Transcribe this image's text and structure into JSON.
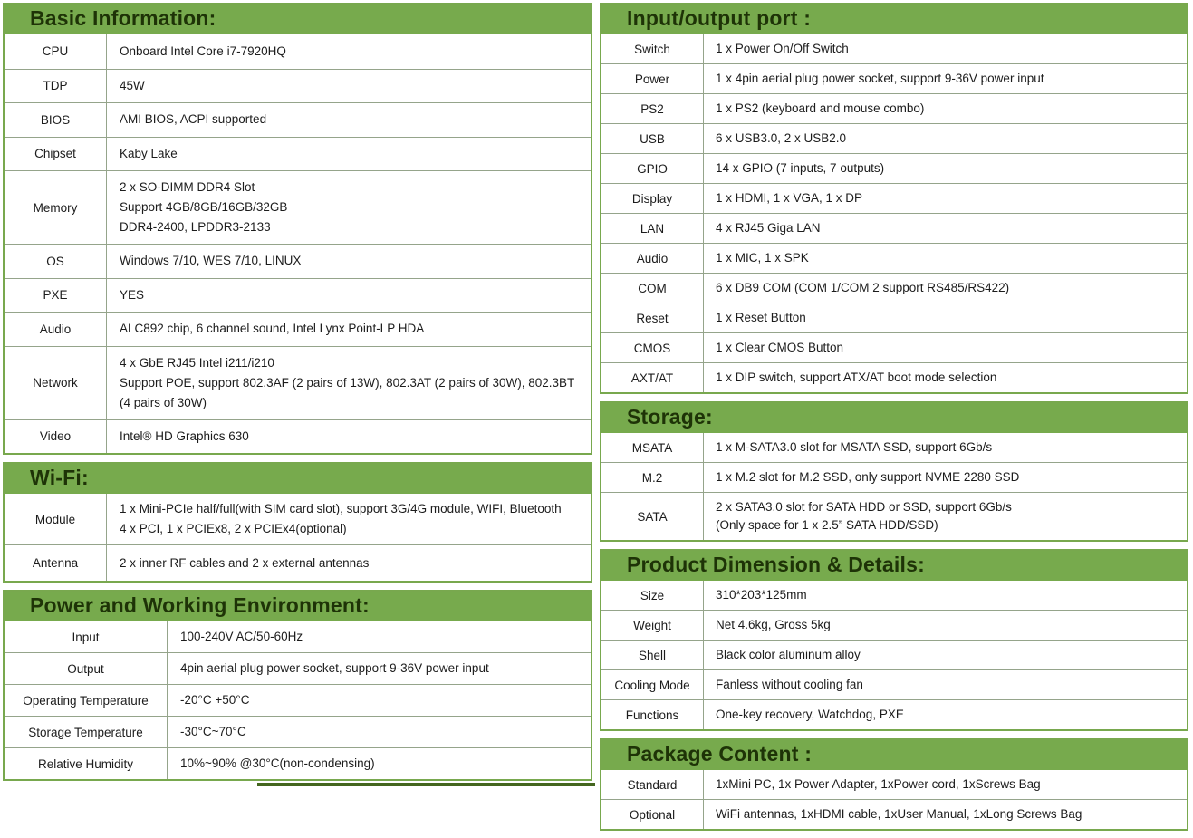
{
  "colors": {
    "header_green": "#77aa4d",
    "header_text": "#1e3307",
    "table_border_green": "#78a84e",
    "row_line": "#95a48b"
  },
  "left_sections": [
    {
      "title": "Basic Information:",
      "rows": [
        {
          "label": "CPU",
          "value": "Onboard Intel Core i7-7920HQ"
        },
        {
          "label": "TDP",
          "value": "45W"
        },
        {
          "label": "BIOS",
          "value": "AMI BIOS, ACPI supported"
        },
        {
          "label": "Chipset",
          "value": "Kaby Lake"
        },
        {
          "label": "Memory",
          "value": [
            "2 x SO-DIMM DDR4 Slot",
            "Support 4GB/8GB/16GB/32GB",
            "DDR4-2400, LPDDR3-2133"
          ]
        },
        {
          "label": "OS",
          "value": "Windows 7/10, WES 7/10, LINUX"
        },
        {
          "label": "PXE",
          "value": "YES"
        },
        {
          "label": "Audio",
          "value": "ALC892 chip, 6 channel sound, Intel Lynx Point-LP HDA"
        },
        {
          "label": "Network",
          "value": [
            "4 x GbE RJ45 Intel i211/i210",
            "Support POE, support 802.3AF (2 pairs of 13W), 802.3AT (2 pairs of 30W), 802.3BT (4 pairs of 30W)"
          ]
        },
        {
          "label": "Video",
          "value": "Intel® HD Graphics 630"
        }
      ]
    },
    {
      "title": "Wi-Fi:",
      "rows": [
        {
          "label": "Module",
          "value": [
            "1 x Mini-PCIe half/full(with SIM card slot), support 3G/4G module, WIFI, Bluetooth",
            "4 x PCI, 1 x PCIEx8, 2 x PCIEx4(optional)"
          ]
        },
        {
          "label": "Antenna",
          "value": "2 x inner RF cables and 2 x external antennas"
        }
      ]
    },
    {
      "title": "Power and Working Environment:",
      "rows": [
        {
          "label": "Input",
          "value": "100-240V AC/50-60Hz"
        },
        {
          "label": "Output",
          "value": "4pin aerial plug power socket, support 9-36V power input"
        },
        {
          "label": "Operating Temperature",
          "value": "-20°C +50°C"
        },
        {
          "label": "Storage Temperature",
          "value": "-30°C~70°C"
        },
        {
          "label": "Relative Humidity",
          "value": "10%~90% @30°C(non-condensing)"
        }
      ]
    }
  ],
  "right_sections": [
    {
      "title": "Input/output port :",
      "rows": [
        {
          "label": "Switch",
          "value": "1 x Power On/Off Switch"
        },
        {
          "label": "Power",
          "value": "1 x 4pin aerial plug power socket, support 9-36V power input"
        },
        {
          "label": "PS2",
          "value": "1 x PS2 (keyboard and mouse combo)"
        },
        {
          "label": "USB",
          "value": "6 x USB3.0, 2 x USB2.0"
        },
        {
          "label": "GPIO",
          "value": "14 x GPIO (7 inputs, 7 outputs)"
        },
        {
          "label": "Display",
          "value": "1 x HDMI, 1 x VGA, 1 x DP"
        },
        {
          "label": "LAN",
          "value": "4 x RJ45 Giga LAN"
        },
        {
          "label": "Audio",
          "value": "1 x MIC, 1 x SPK"
        },
        {
          "label": "COM",
          "value": "6 x DB9 COM (COM 1/COM 2 support RS485/RS422)"
        },
        {
          "label": "Reset",
          "value": "1 x Reset Button"
        },
        {
          "label": "CMOS",
          "value": "1 x Clear CMOS Button"
        },
        {
          "label": "AXT/AT",
          "value": "1 x DIP switch, support ATX/AT boot mode selection"
        }
      ]
    },
    {
      "title": "Storage:",
      "rows": [
        {
          "label": "MSATA",
          "value": "1 x M-SATA3.0 slot for MSATA SSD, support 6Gb/s"
        },
        {
          "label": "M.2",
          "value": "1 x M.2 slot for M.2 SSD, only support NVME 2280 SSD"
        },
        {
          "label": "SATA",
          "value": [
            "2 x SATA3.0 slot for SATA HDD or SSD, support 6Gb/s",
            "(Only space for 1 x 2.5” SATA HDD/SSD)"
          ]
        }
      ]
    },
    {
      "title": "Product Dimension & Details:",
      "rows": [
        {
          "label": "Size",
          "value": "310*203*125mm"
        },
        {
          "label": "Weight",
          "value": "Net 4.6kg, Gross 5kg"
        },
        {
          "label": "Shell",
          "value": "Black color aluminum alloy"
        },
        {
          "label": "Cooling Mode",
          "value": "Fanless without cooling fan"
        },
        {
          "label": "Functions",
          "value": "One-key recovery, Watchdog, PXE"
        }
      ]
    },
    {
      "title": "Package Content :",
      "rows": [
        {
          "label": "Standard",
          "value": "1xMini PC, 1x Power Adapter, 1xPower cord, 1xScrews Bag"
        },
        {
          "label": "Optional",
          "value": "WiFi antennas, 1xHDMI cable, 1xUser Manual, 1xLong Screws Bag"
        }
      ]
    }
  ]
}
